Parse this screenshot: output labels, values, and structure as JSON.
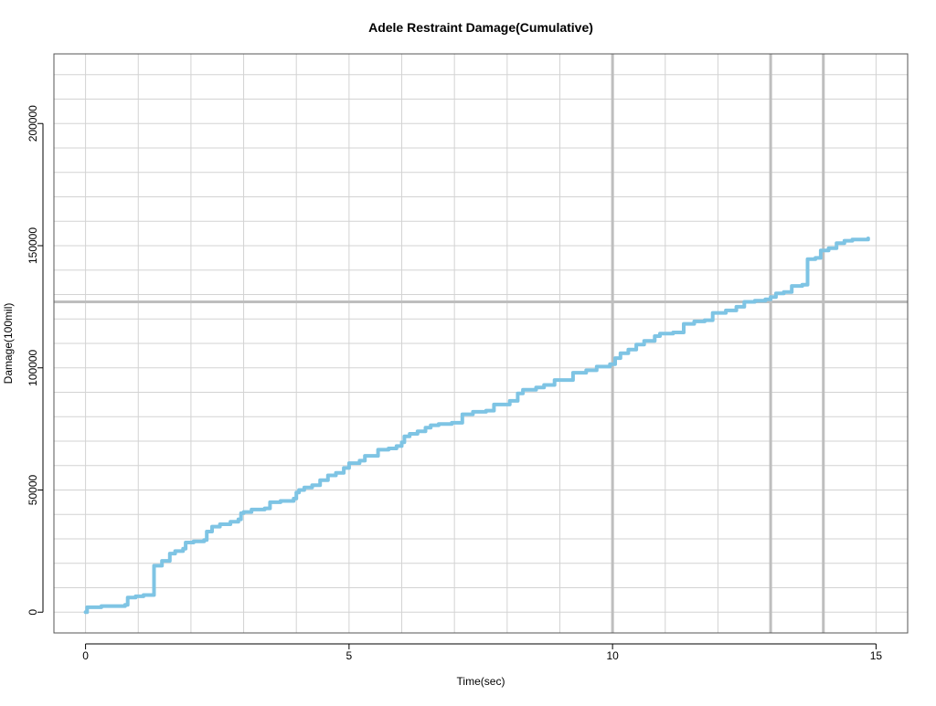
{
  "chart_data": {
    "type": "line",
    "title": "Adele Restraint Damage(Cumulative)",
    "xlabel": "Time(sec)",
    "ylabel": "Damage(100mil)",
    "xlim": [
      -0.6,
      15.6
    ],
    "ylim": [
      -8500,
      228500
    ],
    "x_ticks": [
      0,
      5,
      10,
      15
    ],
    "y_ticks": [
      0,
      50000,
      100000,
      150000,
      200000
    ],
    "x_tick_labels": [
      "0",
      "5",
      "10",
      "15"
    ],
    "y_tick_labels": [
      "0",
      "50000",
      "100000",
      "150000",
      "200000"
    ],
    "grid": true,
    "minor_grid_x_step": 1,
    "minor_grid_y_step": 10000,
    "reference_lines": {
      "vertical": [
        10,
        13,
        14
      ],
      "horizontal": [
        127000
      ]
    },
    "series": [
      {
        "color": "#7ec4e4",
        "line_width": 4,
        "step": true,
        "x": [
          0.0,
          0.03,
          0.3,
          0.6,
          0.75,
          0.8,
          0.95,
          1.1,
          1.25,
          1.3,
          1.45,
          1.6,
          1.7,
          1.85,
          1.9,
          2.05,
          2.25,
          2.3,
          2.4,
          2.55,
          2.75,
          2.9,
          2.95,
          3.0,
          3.15,
          3.4,
          3.5,
          3.7,
          3.95,
          4.0,
          4.05,
          4.15,
          4.3,
          4.45,
          4.6,
          4.75,
          4.9,
          5.0,
          5.2,
          5.3,
          5.55,
          5.75,
          5.9,
          6.0,
          6.05,
          6.15,
          6.3,
          6.45,
          6.55,
          6.7,
          6.95,
          7.15,
          7.35,
          7.6,
          7.75,
          8.05,
          8.2,
          8.3,
          8.55,
          8.7,
          8.9,
          9.05,
          9.25,
          9.5,
          9.7,
          9.95,
          10.05,
          10.15,
          10.3,
          10.45,
          10.6,
          10.8,
          10.9,
          11.15,
          11.35,
          11.55,
          11.75,
          11.9,
          12.15,
          12.35,
          12.5,
          12.7,
          12.9,
          13.0,
          13.1,
          13.25,
          13.4,
          13.6,
          13.7,
          13.85,
          13.95,
          14.1,
          14.25,
          14.4,
          14.55,
          14.85
        ],
        "y": [
          0,
          2000,
          2500,
          2500,
          3000,
          6000,
          6500,
          7000,
          7000,
          19000,
          21000,
          24000,
          25000,
          26000,
          28500,
          29000,
          29500,
          33000,
          35000,
          36000,
          37000,
          38000,
          40500,
          41000,
          42000,
          42500,
          45000,
          45500,
          46500,
          49000,
          50000,
          51000,
          52000,
          54000,
          56000,
          57000,
          59000,
          61000,
          62000,
          64000,
          66500,
          67000,
          68000,
          69500,
          72000,
          73000,
          74000,
          75500,
          76500,
          77000,
          77500,
          81000,
          82000,
          82500,
          85000,
          86500,
          89500,
          91000,
          92000,
          93000,
          95000,
          95000,
          98000,
          99000,
          100500,
          101500,
          104000,
          106000,
          107500,
          109500,
          111000,
          113000,
          114000,
          114500,
          118000,
          119000,
          119500,
          122500,
          123500,
          125000,
          127000,
          127500,
          128000,
          129000,
          130500,
          131000,
          133500,
          134000,
          144500,
          145000,
          148000,
          149000,
          151000,
          152000,
          152500,
          153000
        ]
      }
    ]
  }
}
